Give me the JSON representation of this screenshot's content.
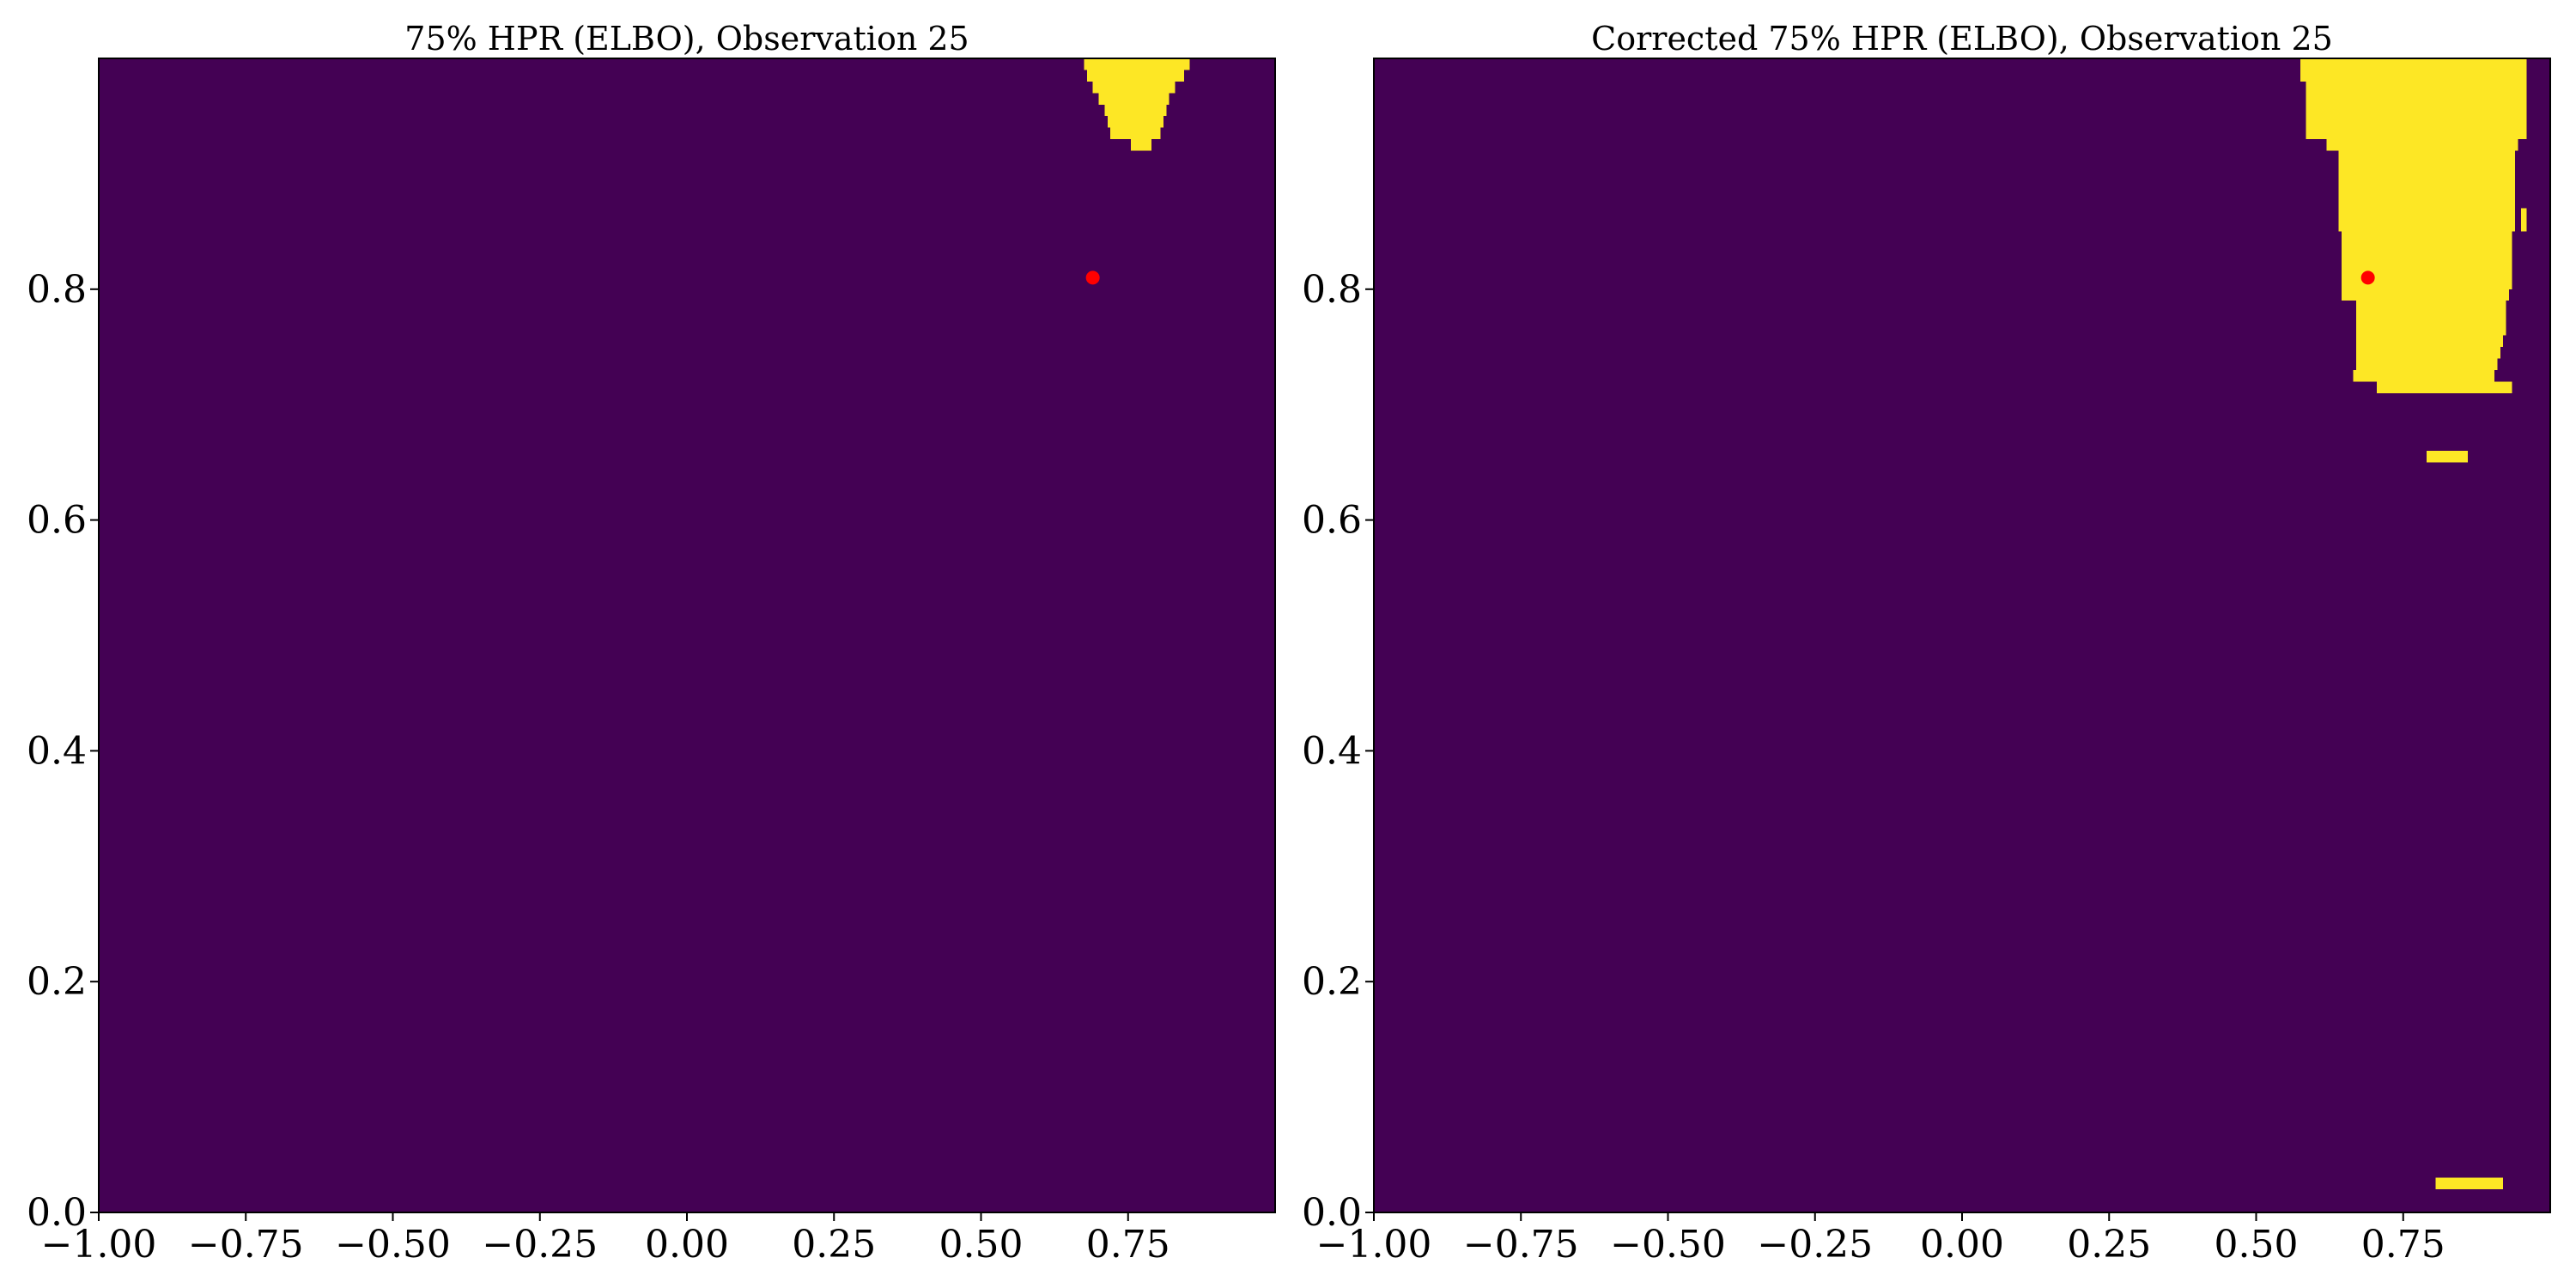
{
  "colors": {
    "outside": "#440154",
    "inside": "#fde725",
    "point": "#ff0000",
    "axis": "#000000",
    "background": "#ffffff"
  },
  "chart_data": [
    {
      "type": "heatmap",
      "title": "75% HPR (ELBO), Observation 25",
      "xlabel": "",
      "ylabel": "",
      "xlim": [
        -1.0,
        1.0
      ],
      "ylim": [
        0.0,
        1.0
      ],
      "x_ticks": [
        -1.0,
        -0.75,
        -0.5,
        -0.25,
        0.0,
        0.25,
        0.5,
        0.75
      ],
      "x_tick_labels": [
        "−1.00",
        "−0.75",
        "−0.50",
        "−0.25",
        "0.00",
        "0.25",
        "0.50",
        "0.75"
      ],
      "y_ticks": [
        0.0,
        0.2,
        0.4,
        0.6,
        0.8
      ],
      "y_tick_labels": [
        "0.0",
        "0.2",
        "0.4",
        "0.6",
        "0.8"
      ],
      "grid": false,
      "values_meaning": "1 = inside highest-posterior region, 0 = outside",
      "region_cells": [
        {
          "x0": 0.675,
          "x1": 0.855,
          "y0": 0.99,
          "y1": 1.0,
          "value": 1
        },
        {
          "x0": 0.68,
          "x1": 0.845,
          "y0": 0.98,
          "y1": 0.99,
          "value": 1
        },
        {
          "x0": 0.69,
          "x1": 0.83,
          "y0": 0.97,
          "y1": 0.98,
          "value": 1
        },
        {
          "x0": 0.7,
          "x1": 0.82,
          "y0": 0.96,
          "y1": 0.97,
          "value": 1
        },
        {
          "x0": 0.71,
          "x1": 0.815,
          "y0": 0.95,
          "y1": 0.96,
          "value": 1
        },
        {
          "x0": 0.715,
          "x1": 0.81,
          "y0": 0.94,
          "y1": 0.95,
          "value": 1
        },
        {
          "x0": 0.72,
          "x1": 0.805,
          "y0": 0.93,
          "y1": 0.94,
          "value": 1
        },
        {
          "x0": 0.755,
          "x1": 0.79,
          "y0": 0.92,
          "y1": 0.93,
          "value": 1
        }
      ],
      "points": [
        {
          "x": 0.69,
          "y": 0.81
        }
      ]
    },
    {
      "type": "heatmap",
      "title": "Corrected 75% HPR (ELBO), Observation 25",
      "xlabel": "",
      "ylabel": "",
      "xlim": [
        -1.0,
        1.0
      ],
      "ylim": [
        0.0,
        1.0
      ],
      "x_ticks": [
        -1.0,
        -0.75,
        -0.5,
        -0.25,
        0.0,
        0.25,
        0.5,
        0.75
      ],
      "x_tick_labels": [
        "−1.00",
        "−0.75",
        "−0.50",
        "−0.25",
        "0.00",
        "0.25",
        "0.50",
        "0.75"
      ],
      "y_ticks": [
        0.0,
        0.2,
        0.4,
        0.6,
        0.8
      ],
      "y_tick_labels": [
        "0.0",
        "0.2",
        "0.4",
        "0.6",
        "0.8"
      ],
      "grid": false,
      "values_meaning": "1 = inside highest-posterior region, 0 = outside",
      "region_cells": [
        {
          "x0": 0.575,
          "x1": 0.96,
          "y0": 0.98,
          "y1": 1.0,
          "value": 1
        },
        {
          "x0": 0.585,
          "x1": 0.96,
          "y0": 0.93,
          "y1": 0.98,
          "value": 1
        },
        {
          "x0": 0.62,
          "x1": 0.945,
          "y0": 0.92,
          "y1": 0.93,
          "value": 1
        },
        {
          "x0": 0.64,
          "x1": 0.94,
          "y0": 0.85,
          "y1": 0.92,
          "value": 1
        },
        {
          "x0": 0.95,
          "x1": 0.96,
          "y0": 0.85,
          "y1": 0.87,
          "value": 1
        },
        {
          "x0": 0.645,
          "x1": 0.935,
          "y0": 0.8,
          "y1": 0.85,
          "value": 1
        },
        {
          "x0": 0.645,
          "x1": 0.93,
          "y0": 0.79,
          "y1": 0.8,
          "value": 1
        },
        {
          "x0": 0.67,
          "x1": 0.925,
          "y0": 0.76,
          "y1": 0.79,
          "value": 1
        },
        {
          "x0": 0.67,
          "x1": 0.92,
          "y0": 0.75,
          "y1": 0.76,
          "value": 1
        },
        {
          "x0": 0.67,
          "x1": 0.915,
          "y0": 0.74,
          "y1": 0.75,
          "value": 1
        },
        {
          "x0": 0.67,
          "x1": 0.91,
          "y0": 0.73,
          "y1": 0.74,
          "value": 1
        },
        {
          "x0": 0.665,
          "x1": 0.905,
          "y0": 0.72,
          "y1": 0.73,
          "value": 1
        },
        {
          "x0": 0.705,
          "x1": 0.935,
          "y0": 0.71,
          "y1": 0.72,
          "value": 1
        },
        {
          "x0": 0.79,
          "x1": 0.86,
          "y0": 0.65,
          "y1": 0.66,
          "value": 1
        },
        {
          "x0": 0.805,
          "x1": 0.92,
          "y0": 0.02,
          "y1": 0.03,
          "value": 1
        }
      ],
      "points": [
        {
          "x": 0.69,
          "y": 0.81
        }
      ]
    }
  ]
}
